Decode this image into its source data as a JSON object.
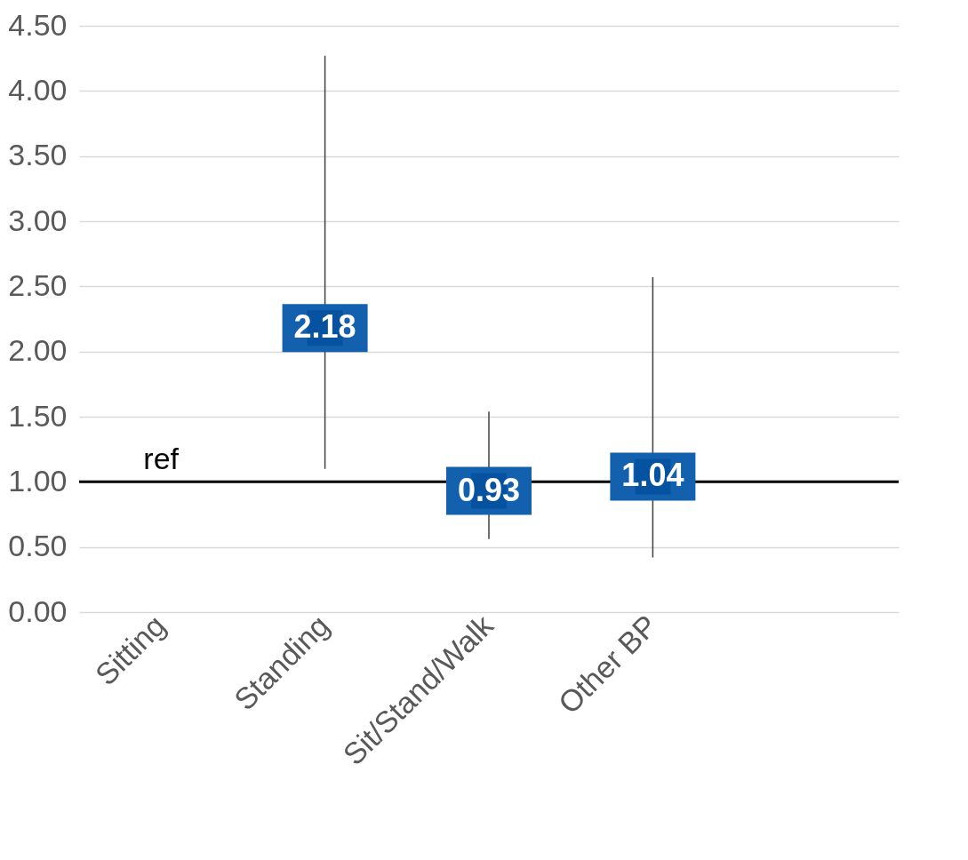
{
  "chart_data": {
    "type": "scatter",
    "categories": [
      "Sitting",
      "Standing",
      "Sit/Stand/Walk",
      "Other BP",
      null
    ],
    "values": [
      null,
      2.18,
      0.93,
      1.04,
      null
    ],
    "errors": [
      null,
      [
        1.1,
        4.27
      ],
      [
        0.56,
        1.54
      ],
      [
        0.42,
        2.57
      ],
      null
    ],
    "color": "#0553a0",
    "marker": "square",
    "data_labels": true,
    "ylim": [
      0,
      4.5
    ],
    "yticks": [
      {
        "value": 0,
        "label": "0.00"
      },
      {
        "value": 0.5,
        "label": "0.50"
      },
      {
        "value": 1,
        "label": "1.00"
      },
      {
        "value": 1.5,
        "label": "1.50"
      },
      {
        "value": 2,
        "label": "2.00"
      },
      {
        "value": 2.5,
        "label": "2.50"
      },
      {
        "value": 3,
        "label": "3.00"
      },
      {
        "value": 3.5,
        "label": "3.50"
      },
      {
        "value": 4,
        "label": "4.00"
      },
      {
        "value": 4.5,
        "label": "4.50"
      }
    ],
    "grid": "y",
    "ref_lines": [
      {
        "axis": "y",
        "value": 1,
        "label": "ref",
        "color": "#000000"
      }
    ]
  }
}
